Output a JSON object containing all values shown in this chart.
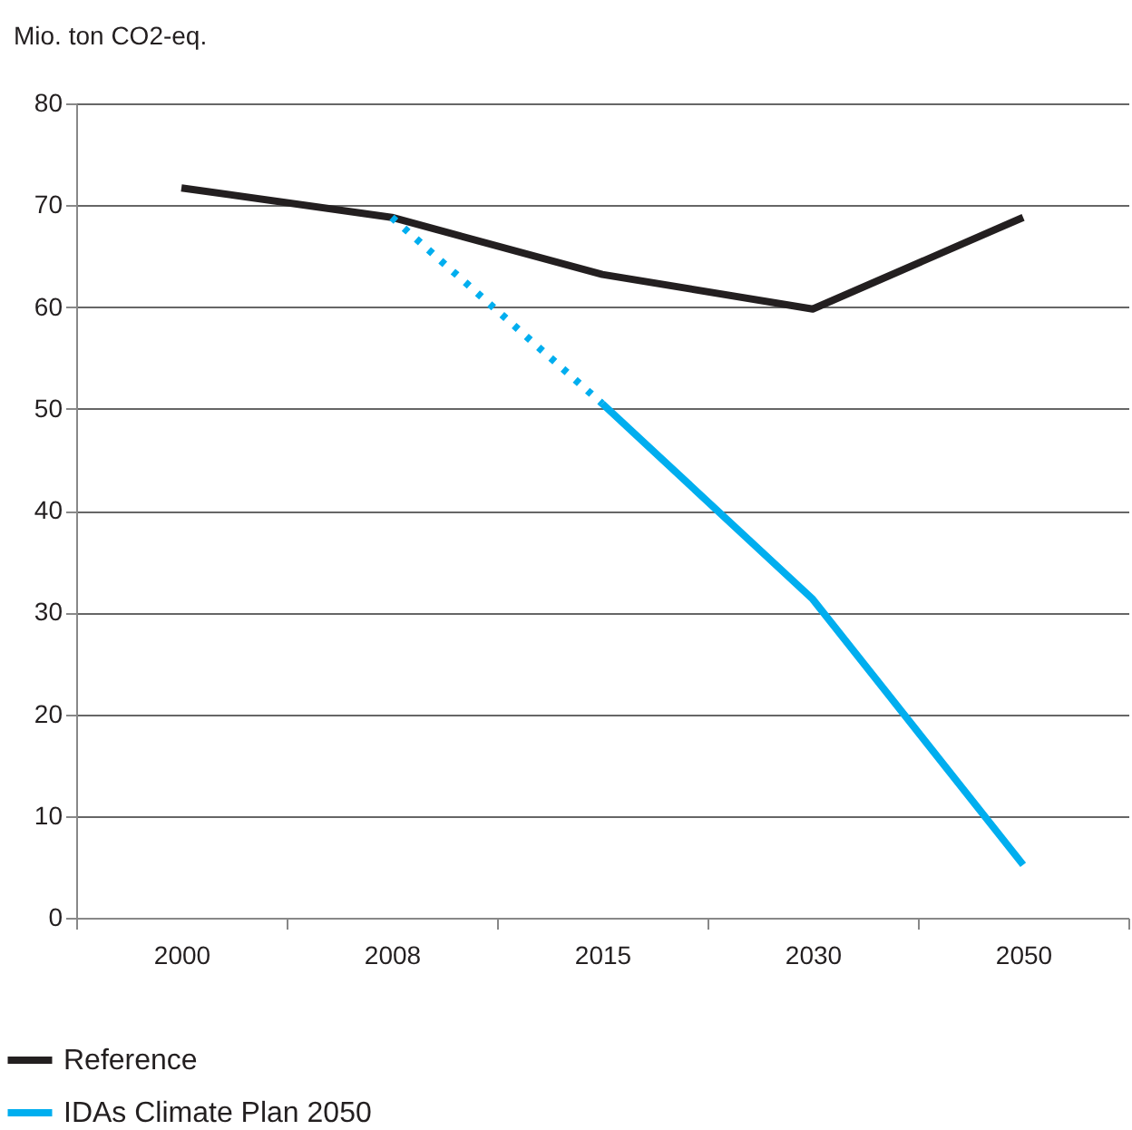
{
  "chart_data": {
    "type": "line",
    "ylabel": "Mio. ton CO2-eq.",
    "categories": [
      "2000",
      "2008",
      "2015",
      "2030",
      "2050"
    ],
    "series": [
      {
        "name": "Reference",
        "color": "#231f20",
        "line_style": "solid",
        "values": [
          71.7,
          68.8,
          63.2,
          59.8,
          68.8
        ]
      },
      {
        "name": "IDAs Climate Plan 2050",
        "color": "#00aeef",
        "line_style": "solid",
        "values": [
          null,
          null,
          50.5,
          31.3,
          5.2
        ]
      },
      {
        "color": "#00aeef",
        "line_style": "dotted",
        "values": [
          null,
          68.8,
          50.5,
          null,
          null
        ]
      }
    ],
    "ylim": [
      0,
      80
    ],
    "yticks": [
      0,
      10,
      20,
      30,
      40,
      50,
      60,
      70,
      80
    ],
    "grid": "y",
    "legend": "bottom left"
  }
}
